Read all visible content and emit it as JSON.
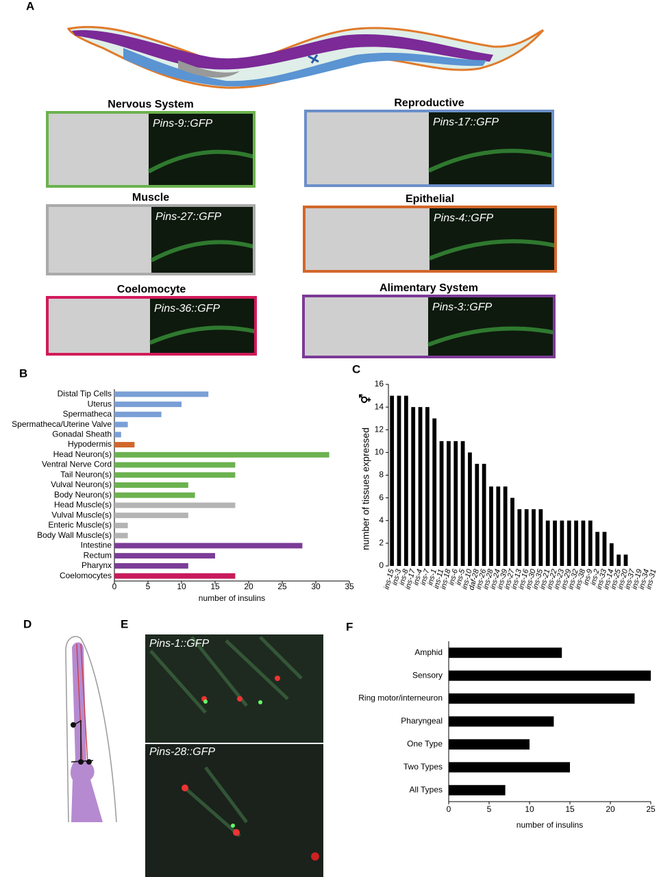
{
  "panel_labels": {
    "a": "A",
    "b": "B",
    "c": "C",
    "d": "D",
    "e": "E",
    "f": "F"
  },
  "panel_a": {
    "tiles": [
      {
        "title": "Nervous System",
        "reporter": "Pins-9::GFP"
      },
      {
        "title": "Reproductive",
        "reporter": "Pins-17::GFP"
      },
      {
        "title": "Muscle",
        "reporter": "Pins-27::GFP"
      },
      {
        "title": "Epithelial",
        "reporter": "Pins-4::GFP"
      },
      {
        "title": "Coelomocyte",
        "reporter": "Pins-36::GFP"
      },
      {
        "title": "Alimentary System",
        "reporter": "Pins-3::GFP"
      }
    ]
  },
  "panel_e": {
    "images": [
      {
        "label": "Pins-1::GFP"
      },
      {
        "label": "Pins-28::GFP"
      }
    ]
  },
  "chart_data": [
    {
      "type": "barh",
      "x_label": "number of insulins",
      "categories": [
        "Distal Tip Cells",
        "Uterus",
        "Spermatheca",
        "Spermatheca/Uterine Valve",
        "Gonadal Sheath",
        "Hypodermis",
        "Head Neuron(s)",
        "Ventral Nerve Cord",
        "Tail Neuron(s)",
        "Vulval Neuron(s)",
        "Body Neuron(s)",
        "Head Muscle(s)",
        "Vulval Muscle(s)",
        "Enteric Muscle(s)",
        "Body Wall Muscle(s)",
        "Intestine",
        "Rectum",
        "Pharynx",
        "Coelomocytes"
      ],
      "values": [
        14,
        10,
        7,
        2,
        1,
        3,
        32,
        18,
        18,
        11,
        12,
        18,
        11,
        2,
        2,
        28,
        15,
        11,
        18
      ],
      "colors": [
        "#7a9fd6",
        "#7a9fd6",
        "#7a9fd6",
        "#7a9fd6",
        "#7a9fd6",
        "#d2672b",
        "#6cb24f",
        "#6cb24f",
        "#6cb24f",
        "#6cb24f",
        "#6cb24f",
        "#b4b4b4",
        "#b4b4b4",
        "#b4b4b4",
        "#b4b4b4",
        "#7b3c97",
        "#7b3c97",
        "#7b3c97",
        "#c81a5c"
      ],
      "xlim": [
        0,
        35
      ],
      "xticks": [
        0,
        5,
        10,
        15,
        20,
        25,
        30,
        35
      ]
    },
    {
      "type": "bar",
      "y_label": "number of tissues expressed",
      "symbol": "⚥",
      "color": "#000000",
      "categories": [
        "ins-15",
        "ins-3",
        "ins-8",
        "ins-17",
        "ins-4",
        "ins-7",
        "ins-1",
        "ins-11",
        "ins-18",
        "ins-6",
        "ins-5",
        "ins-10",
        "daf-28",
        "ins-26",
        "ins-28",
        "ins-24",
        "ins-39",
        "ins-27",
        "ins-13",
        "ins-16",
        "ins-30",
        "ins-35",
        "ins-21",
        "ins-22",
        "ins-23",
        "ins-29",
        "ins-32",
        "ins-38",
        "ins-9",
        "ins-2",
        "ins-33",
        "ins-14",
        "ins-25",
        "ins-20",
        "ins-37",
        "ins-19",
        "ins-34",
        "ins-31"
      ],
      "values": [
        15,
        15,
        15,
        14,
        14,
        14,
        13,
        11,
        11,
        11,
        11,
        10,
        9,
        9,
        7,
        7,
        7,
        6,
        5,
        5,
        5,
        5,
        4,
        4,
        4,
        4,
        4,
        4,
        4,
        3,
        3,
        2,
        1,
        1,
        0,
        0,
        0,
        0
      ],
      "ylim": [
        0,
        16
      ],
      "yticks": [
        0,
        2,
        4,
        6,
        8,
        10,
        12,
        14,
        16
      ]
    },
    {
      "type": "barh",
      "x_label": "number of insulins",
      "color": "#000000",
      "categories": [
        "Amphid",
        "Sensory",
        "Ring motor/interneuron",
        "Pharyngeal",
        "One Type",
        "Two Types",
        "All Types"
      ],
      "values": [
        14,
        25,
        23,
        13,
        10,
        15,
        7
      ],
      "xlim": [
        0,
        25
      ],
      "xticks": [
        0,
        5,
        10,
        15,
        20,
        25
      ]
    }
  ]
}
